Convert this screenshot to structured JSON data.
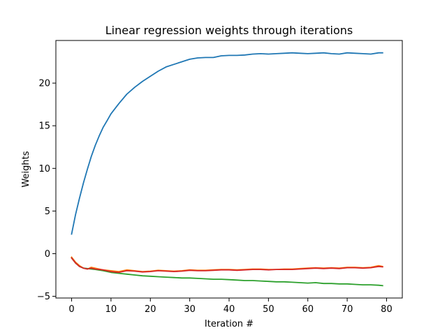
{
  "chart_data": {
    "type": "line",
    "title": "Linear regression weights through iterations",
    "xlabel": "Iteration #",
    "ylabel": "Weights",
    "xlim": [
      -4,
      84
    ],
    "ylim": [
      -5.2,
      25.0
    ],
    "xticks": [
      0,
      10,
      20,
      30,
      40,
      50,
      60,
      70,
      80
    ],
    "yticks": [
      -5,
      0,
      5,
      10,
      15,
      20
    ],
    "grid": false,
    "legend": "none",
    "colors": [
      "#1f77b4",
      "#ff7f0e",
      "#2ca02c",
      "#d62728"
    ],
    "series": [
      {
        "color": "#1f77b4",
        "x": [
          0,
          1,
          2,
          3,
          4,
          5,
          6,
          7,
          8,
          9,
          10,
          12,
          14,
          16,
          18,
          20,
          22,
          24,
          26,
          28,
          30,
          32,
          34,
          36,
          38,
          40,
          42,
          44,
          46,
          48,
          50,
          52,
          54,
          56,
          58,
          60,
          62,
          64,
          66,
          68,
          70,
          72,
          74,
          76,
          78,
          79
        ],
        "y": [
          2.3,
          4.6,
          6.5,
          8.3,
          9.9,
          11.4,
          12.7,
          13.8,
          14.8,
          15.6,
          16.4,
          17.6,
          18.7,
          19.5,
          20.2,
          20.8,
          21.4,
          21.9,
          22.2,
          22.5,
          22.8,
          22.95,
          23.0,
          23.0,
          23.2,
          23.25,
          23.25,
          23.3,
          23.4,
          23.45,
          23.4,
          23.45,
          23.5,
          23.55,
          23.5,
          23.45,
          23.5,
          23.55,
          23.45,
          23.4,
          23.55,
          23.5,
          23.45,
          23.4,
          23.55,
          23.55
        ]
      },
      {
        "color": "#ff7f0e",
        "x": [
          0,
          1,
          2,
          3,
          4,
          5,
          6,
          7,
          8,
          10,
          12,
          14,
          16,
          18,
          20,
          22,
          24,
          26,
          28,
          30,
          32,
          34,
          36,
          38,
          40,
          42,
          44,
          46,
          48,
          50,
          52,
          54,
          56,
          58,
          60,
          62,
          64,
          66,
          68,
          70,
          72,
          74,
          76,
          78,
          79
        ],
        "y": [
          -0.4,
          -1.0,
          -1.4,
          -1.7,
          -1.8,
          -1.6,
          -1.7,
          -1.8,
          -1.9,
          -2.0,
          -2.1,
          -1.9,
          -2.0,
          -2.1,
          -2.05,
          -1.95,
          -2.0,
          -2.05,
          -2.0,
          -1.9,
          -1.95,
          -1.95,
          -1.9,
          -1.85,
          -1.85,
          -1.9,
          -1.85,
          -1.8,
          -1.8,
          -1.85,
          -1.85,
          -1.8,
          -1.8,
          -1.75,
          -1.7,
          -1.65,
          -1.7,
          -1.65,
          -1.7,
          -1.6,
          -1.6,
          -1.65,
          -1.6,
          -1.4,
          -1.5
        ]
      },
      {
        "color": "#2ca02c",
        "x": [
          0,
          1,
          2,
          3,
          4,
          5,
          6,
          8,
          10,
          12,
          14,
          16,
          18,
          20,
          22,
          24,
          26,
          28,
          30,
          32,
          34,
          36,
          38,
          40,
          42,
          44,
          46,
          48,
          50,
          52,
          54,
          56,
          58,
          60,
          62,
          64,
          66,
          68,
          70,
          72,
          74,
          76,
          78,
          79
        ],
        "y": [
          -0.5,
          -1.1,
          -1.5,
          -1.7,
          -1.75,
          -1.8,
          -1.85,
          -2.0,
          -2.2,
          -2.3,
          -2.4,
          -2.5,
          -2.6,
          -2.65,
          -2.7,
          -2.75,
          -2.8,
          -2.85,
          -2.85,
          -2.9,
          -2.95,
          -3.0,
          -3.0,
          -3.05,
          -3.1,
          -3.15,
          -3.15,
          -3.2,
          -3.25,
          -3.3,
          -3.3,
          -3.35,
          -3.4,
          -3.45,
          -3.4,
          -3.5,
          -3.5,
          -3.55,
          -3.55,
          -3.6,
          -3.65,
          -3.65,
          -3.7,
          -3.75
        ]
      },
      {
        "color": "#d62728",
        "x": [
          0,
          1,
          2,
          3,
          4,
          5,
          6,
          8,
          10,
          12,
          14,
          16,
          18,
          20,
          22,
          24,
          26,
          28,
          30,
          32,
          34,
          36,
          38,
          40,
          42,
          44,
          46,
          48,
          50,
          52,
          54,
          56,
          58,
          60,
          62,
          64,
          66,
          68,
          70,
          72,
          74,
          76,
          78,
          79
        ],
        "y": [
          -0.5,
          -1.1,
          -1.5,
          -1.7,
          -1.8,
          -1.7,
          -1.8,
          -1.9,
          -2.1,
          -2.2,
          -2.0,
          -2.05,
          -2.15,
          -2.1,
          -2.0,
          -2.05,
          -2.1,
          -2.05,
          -1.95,
          -2.0,
          -2.0,
          -1.95,
          -1.9,
          -1.9,
          -1.95,
          -1.9,
          -1.85,
          -1.85,
          -1.9,
          -1.85,
          -1.85,
          -1.85,
          -1.8,
          -1.75,
          -1.7,
          -1.75,
          -1.7,
          -1.75,
          -1.65,
          -1.65,
          -1.7,
          -1.65,
          -1.5,
          -1.55
        ]
      }
    ]
  }
}
